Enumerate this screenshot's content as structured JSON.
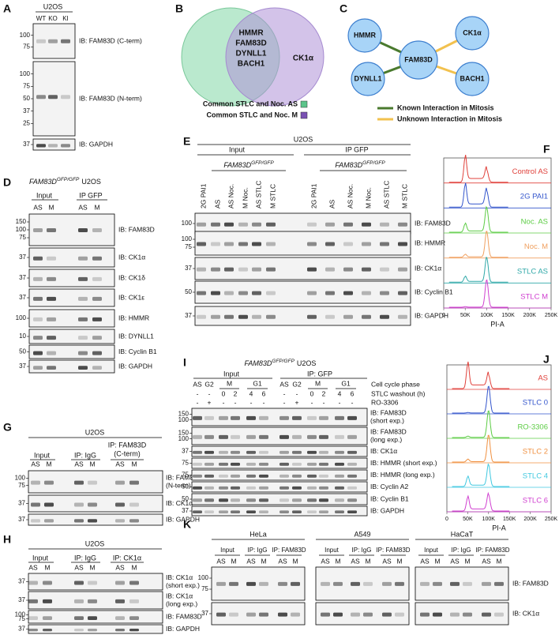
{
  "panel_a": {
    "letter": "A",
    "cell_line": "U2OS",
    "lanes": [
      "WT",
      "KO",
      "KI"
    ],
    "blots": [
      {
        "label": "IB: FAM83D (C-term)",
        "markers": [
          "100",
          "75"
        ]
      },
      {
        "label": "IB: FAM83D (N-term)",
        "markers": [
          "100",
          "75",
          "50",
          "37",
          "25"
        ]
      },
      {
        "label": "IB: GAPDH",
        "markers": [
          "37"
        ]
      }
    ]
  },
  "panel_b": {
    "letter": "B",
    "shared": [
      "HMMR",
      "FAM83D",
      "DYNLL1",
      "BACH1"
    ],
    "unique": "CK1α",
    "legend": [
      {
        "label": "Common STLC and Noc. AS",
        "color": "#5cc48a"
      },
      {
        "label": "Common STLC and Noc. M",
        "color": "#7a52b3"
      }
    ]
  },
  "panel_c": {
    "letter": "C",
    "nodes": [
      "HMMR",
      "CK1α",
      "FAM83D",
      "DYNLL1",
      "BACH1"
    ],
    "edges": [
      {
        "source": 0,
        "target": 2,
        "kind": 0
      },
      {
        "source": 3,
        "target": 2,
        "kind": 0
      },
      {
        "source": 1,
        "target": 2,
        "kind": 1
      },
      {
        "source": 4,
        "target": 2,
        "kind": 1
      }
    ],
    "legend": [
      {
        "label": "Known Interaction in Mitosis",
        "color": "#4a7a2e"
      },
      {
        "label": "Unknown Interaction in Mitosis",
        "color": "#f2c14e"
      }
    ]
  },
  "panel_d": {
    "letter": "D",
    "title": {
      "gene": "FAM83D",
      "allele": "GFP/GFP",
      "cell_line": "U2OS"
    },
    "groups": [
      "Input",
      "IP GFP"
    ],
    "lanes": [
      "AS",
      "M",
      "AS",
      "M"
    ],
    "blots": [
      {
        "label": "IB: FAM83D",
        "markers": [
          "150",
          "100",
          "75"
        ]
      },
      {
        "label": "IB: CK1α",
        "markers": [
          "37"
        ]
      },
      {
        "label": "IB: CK1δ",
        "markers": [
          "37"
        ]
      },
      {
        "label": "IB: CK1ε",
        "markers": [
          "37"
        ]
      },
      {
        "label": "IB: HMMR",
        "markers": [
          "100"
        ]
      },
      {
        "label": "IB: DYNLL1",
        "markers": [
          "10"
        ]
      },
      {
        "label": "IB: Cyclin B1",
        "markers": [
          "50"
        ]
      },
      {
        "label": "IB: GAPDH",
        "markers": [
          "37"
        ]
      }
    ]
  },
  "panel_e": {
    "letter": "E",
    "cell_line": "U2OS",
    "groups": [
      "Input",
      "IP GFP"
    ],
    "subgroup": {
      "gene": "FAM83D",
      "allele": "GFP/GFP"
    },
    "lanes": [
      "2G PAI1",
      "AS",
      "AS Noc.",
      "M Noc.",
      "AS STLC",
      "M STLC",
      "2G PAI1",
      "AS",
      "AS Noc.",
      "M Noc.",
      "AS STLC",
      "M STLC"
    ],
    "blots": [
      {
        "label": "IB: FAM83D",
        "markers": [
          "100"
        ]
      },
      {
        "label": "IB: HMMR",
        "markers": [
          "100",
          "75"
        ]
      },
      {
        "label": "IB: CK1α",
        "markers": [
          "37"
        ]
      },
      {
        "label": "IB: Cyclin B1",
        "markers": [
          "50"
        ]
      },
      {
        "label": "IB: GAPDH",
        "markers": [
          "37"
        ]
      }
    ]
  },
  "panel_f": {
    "letter": "F",
    "traces": [
      {
        "label": "Control AS",
        "color": "#e0413b"
      },
      {
        "label": "2G PAI1",
        "color": "#3355cc"
      },
      {
        "label": "Noc. AS",
        "color": "#5ccc44"
      },
      {
        "label": "Noc. M",
        "color": "#f0a060"
      },
      {
        "label": "STLC AS",
        "color": "#2fa8a8"
      },
      {
        "label": "STLC M",
        "color": "#d040d0"
      }
    ],
    "x_ticks": [
      "0",
      "50K",
      "100K",
      "150K",
      "200K",
      "250K"
    ],
    "x_label": "PI-A"
  },
  "panel_g": {
    "letter": "G",
    "cell_line": "U2OS",
    "groups": [
      "Input",
      "IP: IgG",
      "IP: FAM83D"
    ],
    "group_note": "(C-term)",
    "lanes": [
      "AS",
      "M",
      "AS",
      "M",
      "AS",
      "M"
    ],
    "blots": [
      {
        "label": "IB: FAM83D",
        "line2": "(N-term)",
        "markers": [
          "100",
          "75"
        ]
      },
      {
        "label": "IB: CK1α",
        "markers": [
          "37"
        ]
      },
      {
        "label": "IB: GAPDH",
        "markers": [
          "37"
        ]
      }
    ]
  },
  "panel_h": {
    "letter": "H",
    "cell_line": "U2OS",
    "groups": [
      "Input",
      "IP: IgG",
      "IP: CK1α"
    ],
    "lanes": [
      "AS",
      "M",
      "AS",
      "M",
      "AS",
      "M"
    ],
    "blots": [
      {
        "label": "IB: CK1α",
        "line2": "(short exp.)",
        "markers": [
          "37"
        ]
      },
      {
        "label": "IB: CK1α",
        "line2": "(long exp.)",
        "markers": [
          "37"
        ]
      },
      {
        "label": "IB: FAM83D",
        "markers": [
          "100",
          "75"
        ]
      },
      {
        "label": "IB: GAPDH",
        "markers": [
          "37"
        ]
      }
    ]
  },
  "panel_i": {
    "letter": "I",
    "title": {
      "gene": "FAM83D",
      "allele": "GFP/GFP",
      "cell_line": "U2OS"
    },
    "groups": [
      "Input",
      "IP: GFP"
    ],
    "row_labels": [
      "Cell cycle phase",
      "STLC washout (h)",
      "RO-3306"
    ],
    "phases": [
      "AS",
      "G2",
      "M",
      "G1"
    ],
    "washout": [
      "-",
      "-",
      "0",
      "2",
      "4",
      "6"
    ],
    "ro3306": [
      "-",
      "+",
      "-",
      "-",
      "-",
      "-"
    ],
    "blots": [
      {
        "label": "IB: FAM83D",
        "line2": "(short exp.)",
        "markers": [
          "150",
          "100"
        ]
      },
      {
        "label": "IB: FAM83D",
        "line2": "(long exp.)",
        "markers": [
          "150",
          "100"
        ]
      },
      {
        "label": "IB: CK1α",
        "markers": [
          "37"
        ]
      },
      {
        "label": "IB: HMMR (short exp.)",
        "markers": [
          "75"
        ]
      },
      {
        "label": "IB: HMMR (long exp.)",
        "markers": [
          "75"
        ]
      },
      {
        "label": "IB: Cyclin A2",
        "markers": [
          "50"
        ]
      },
      {
        "label": "IB: Cyclin B1",
        "markers": [
          "50"
        ]
      },
      {
        "label": "IB: GAPDH",
        "markers": [
          "37"
        ]
      }
    ]
  },
  "panel_j": {
    "letter": "J",
    "traces": [
      {
        "label": "AS",
        "color": "#e0413b"
      },
      {
        "label": "STLC 0",
        "color": "#3355cc"
      },
      {
        "label": "RO-3306",
        "color": "#5ccc44"
      },
      {
        "label": "STLC 2",
        "color": "#f09040"
      },
      {
        "label": "STLC 4",
        "color": "#40c8e0"
      },
      {
        "label": "STLC 6",
        "color": "#d040d0"
      }
    ],
    "x_ticks": [
      "0",
      "50K",
      "100K",
      "150K",
      "200K",
      "250K"
    ],
    "x_label": "PI-A"
  },
  "panel_k": {
    "letter": "K",
    "cell_lines": [
      "HeLa",
      "A549",
      "HaCaT"
    ],
    "groups": [
      "Input",
      "IP: IgG",
      "IP: FAM83D"
    ],
    "lanes": [
      "AS",
      "M",
      "AS",
      "M",
      "AS",
      "M"
    ],
    "blots": [
      {
        "label": "IB: FAM83D",
        "markers": [
          "100",
          "75"
        ]
      },
      {
        "label": "IB: CK1α",
        "markers": [
          "37"
        ]
      }
    ]
  }
}
